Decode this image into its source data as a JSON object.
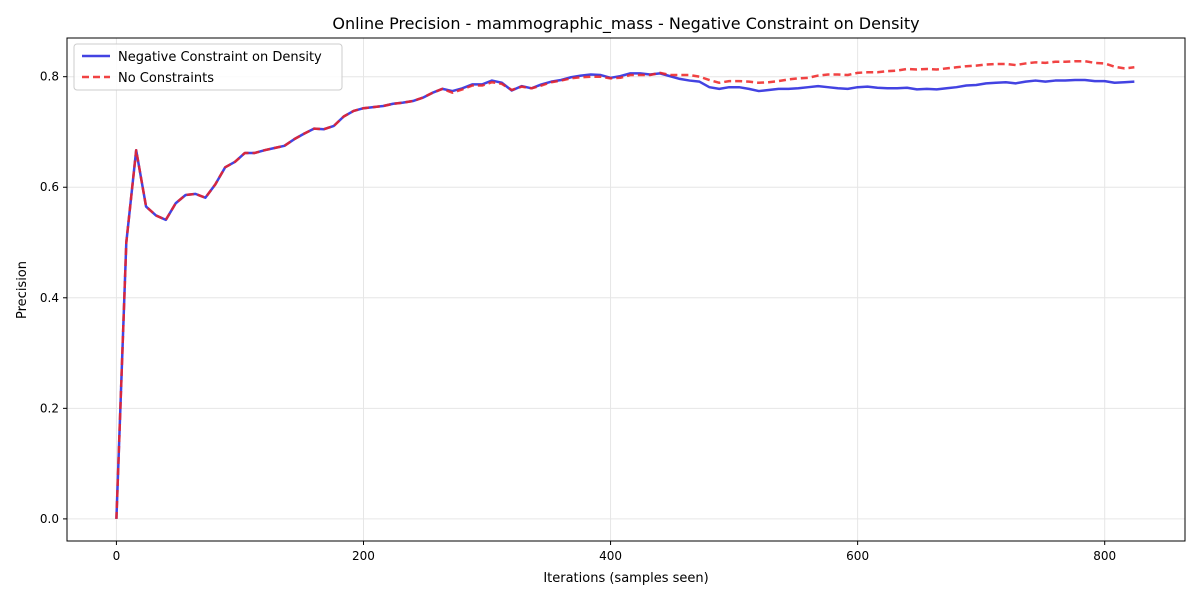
{
  "chart_data": {
    "type": "line",
    "title": "Online Precision - mammographic_mass - Negative Constraint on Density",
    "xlabel": "Iterations (samples seen)",
    "ylabel": "Precision",
    "xlim": [
      -40,
      865
    ],
    "ylim": [
      -0.04,
      0.87
    ],
    "xticks": [
      0,
      200,
      400,
      600,
      800
    ],
    "yticks": [
      0.0,
      0.2,
      0.4,
      0.6,
      0.8
    ],
    "xtick_labels": [
      "0",
      "200",
      "400",
      "600",
      "800"
    ],
    "ytick_labels": [
      "0.0",
      "0.2",
      "0.4",
      "0.6",
      "0.8"
    ],
    "grid": true,
    "legend_position": "upper-left",
    "series": [
      {
        "name": "Negative Constraint on Density",
        "color": "#2222dd",
        "style": "solid",
        "points": [
          [
            0,
            0.0
          ],
          [
            8,
            0.5
          ],
          [
            16,
            0.667
          ],
          [
            24,
            0.565
          ],
          [
            32,
            0.549
          ],
          [
            40,
            0.541
          ],
          [
            48,
            0.571
          ],
          [
            56,
            0.586
          ],
          [
            64,
            0.588
          ],
          [
            72,
            0.581
          ],
          [
            80,
            0.605
          ],
          [
            88,
            0.636
          ],
          [
            96,
            0.646
          ],
          [
            104,
            0.662
          ],
          [
            112,
            0.662
          ],
          [
            120,
            0.667
          ],
          [
            128,
            0.671
          ],
          [
            136,
            0.675
          ],
          [
            144,
            0.687
          ],
          [
            152,
            0.697
          ],
          [
            160,
            0.706
          ],
          [
            168,
            0.705
          ],
          [
            176,
            0.711
          ],
          [
            184,
            0.728
          ],
          [
            192,
            0.738
          ],
          [
            200,
            0.743
          ],
          [
            208,
            0.745
          ],
          [
            216,
            0.747
          ],
          [
            224,
            0.751
          ],
          [
            232,
            0.753
          ],
          [
            240,
            0.756
          ],
          [
            248,
            0.762
          ],
          [
            256,
            0.771
          ],
          [
            264,
            0.778
          ],
          [
            272,
            0.774
          ],
          [
            280,
            0.779
          ],
          [
            288,
            0.786
          ],
          [
            296,
            0.786
          ],
          [
            304,
            0.793
          ],
          [
            312,
            0.789
          ],
          [
            320,
            0.775
          ],
          [
            328,
            0.783
          ],
          [
            336,
            0.779
          ],
          [
            344,
            0.786
          ],
          [
            352,
            0.791
          ],
          [
            360,
            0.794
          ],
          [
            368,
            0.799
          ],
          [
            376,
            0.802
          ],
          [
            384,
            0.804
          ],
          [
            392,
            0.803
          ],
          [
            400,
            0.798
          ],
          [
            408,
            0.801
          ],
          [
            416,
            0.806
          ],
          [
            424,
            0.806
          ],
          [
            432,
            0.804
          ],
          [
            440,
            0.806
          ],
          [
            448,
            0.801
          ],
          [
            456,
            0.796
          ],
          [
            464,
            0.793
          ],
          [
            472,
            0.791
          ],
          [
            480,
            0.781
          ],
          [
            488,
            0.778
          ],
          [
            496,
            0.781
          ],
          [
            504,
            0.781
          ],
          [
            512,
            0.778
          ],
          [
            520,
            0.774
          ],
          [
            528,
            0.776
          ],
          [
            536,
            0.778
          ],
          [
            544,
            0.778
          ],
          [
            552,
            0.779
          ],
          [
            560,
            0.781
          ],
          [
            568,
            0.783
          ],
          [
            576,
            0.781
          ],
          [
            584,
            0.779
          ],
          [
            592,
            0.778
          ],
          [
            600,
            0.781
          ],
          [
            608,
            0.782
          ],
          [
            616,
            0.78
          ],
          [
            624,
            0.779
          ],
          [
            632,
            0.779
          ],
          [
            640,
            0.78
          ],
          [
            648,
            0.777
          ],
          [
            656,
            0.778
          ],
          [
            664,
            0.777
          ],
          [
            672,
            0.779
          ],
          [
            680,
            0.781
          ],
          [
            688,
            0.784
          ],
          [
            696,
            0.785
          ],
          [
            704,
            0.788
          ],
          [
            712,
            0.789
          ],
          [
            720,
            0.79
          ],
          [
            728,
            0.788
          ],
          [
            736,
            0.791
          ],
          [
            744,
            0.793
          ],
          [
            752,
            0.791
          ],
          [
            760,
            0.793
          ],
          [
            768,
            0.793
          ],
          [
            776,
            0.794
          ],
          [
            784,
            0.794
          ],
          [
            792,
            0.792
          ],
          [
            800,
            0.792
          ],
          [
            808,
            0.789
          ],
          [
            816,
            0.79
          ],
          [
            824,
            0.791
          ]
        ]
      },
      {
        "name": "No Constraints",
        "color": "#ee2222",
        "style": "dashed",
        "points": [
          [
            0,
            0.0
          ],
          [
            8,
            0.5
          ],
          [
            16,
            0.667
          ],
          [
            24,
            0.565
          ],
          [
            32,
            0.549
          ],
          [
            40,
            0.541
          ],
          [
            48,
            0.571
          ],
          [
            56,
            0.586
          ],
          [
            64,
            0.588
          ],
          [
            72,
            0.581
          ],
          [
            80,
            0.605
          ],
          [
            88,
            0.636
          ],
          [
            96,
            0.646
          ],
          [
            104,
            0.662
          ],
          [
            112,
            0.662
          ],
          [
            120,
            0.667
          ],
          [
            128,
            0.671
          ],
          [
            136,
            0.675
          ],
          [
            144,
            0.687
          ],
          [
            152,
            0.697
          ],
          [
            160,
            0.706
          ],
          [
            168,
            0.705
          ],
          [
            176,
            0.711
          ],
          [
            184,
            0.728
          ],
          [
            192,
            0.738
          ],
          [
            200,
            0.743
          ],
          [
            208,
            0.745
          ],
          [
            216,
            0.747
          ],
          [
            224,
            0.751
          ],
          [
            232,
            0.753
          ],
          [
            240,
            0.756
          ],
          [
            248,
            0.762
          ],
          [
            256,
            0.771
          ],
          [
            264,
            0.778
          ],
          [
            272,
            0.771
          ],
          [
            280,
            0.777
          ],
          [
            288,
            0.784
          ],
          [
            296,
            0.784
          ],
          [
            304,
            0.79
          ],
          [
            312,
            0.787
          ],
          [
            320,
            0.776
          ],
          [
            328,
            0.782
          ],
          [
            336,
            0.779
          ],
          [
            344,
            0.784
          ],
          [
            352,
            0.79
          ],
          [
            360,
            0.793
          ],
          [
            368,
            0.797
          ],
          [
            376,
            0.799
          ],
          [
            384,
            0.8
          ],
          [
            392,
            0.8
          ],
          [
            400,
            0.797
          ],
          [
            408,
            0.798
          ],
          [
            416,
            0.803
          ],
          [
            424,
            0.803
          ],
          [
            432,
            0.803
          ],
          [
            440,
            0.807
          ],
          [
            448,
            0.803
          ],
          [
            456,
            0.803
          ],
          [
            464,
            0.803
          ],
          [
            472,
            0.8
          ],
          [
            480,
            0.794
          ],
          [
            488,
            0.789
          ],
          [
            496,
            0.792
          ],
          [
            504,
            0.792
          ],
          [
            512,
            0.791
          ],
          [
            520,
            0.789
          ],
          [
            528,
            0.79
          ],
          [
            536,
            0.792
          ],
          [
            544,
            0.795
          ],
          [
            552,
            0.797
          ],
          [
            560,
            0.798
          ],
          [
            568,
            0.802
          ],
          [
            576,
            0.804
          ],
          [
            584,
            0.804
          ],
          [
            592,
            0.803
          ],
          [
            600,
            0.807
          ],
          [
            608,
            0.808
          ],
          [
            616,
            0.808
          ],
          [
            624,
            0.81
          ],
          [
            632,
            0.811
          ],
          [
            640,
            0.814
          ],
          [
            648,
            0.813
          ],
          [
            656,
            0.814
          ],
          [
            664,
            0.813
          ],
          [
            672,
            0.815
          ],
          [
            680,
            0.817
          ],
          [
            688,
            0.819
          ],
          [
            696,
            0.82
          ],
          [
            704,
            0.822
          ],
          [
            712,
            0.823
          ],
          [
            720,
            0.823
          ],
          [
            728,
            0.821
          ],
          [
            736,
            0.824
          ],
          [
            744,
            0.826
          ],
          [
            752,
            0.825
          ],
          [
            760,
            0.827
          ],
          [
            768,
            0.827
          ],
          [
            776,
            0.828
          ],
          [
            784,
            0.828
          ],
          [
            792,
            0.825
          ],
          [
            800,
            0.824
          ],
          [
            808,
            0.818
          ],
          [
            816,
            0.815
          ],
          [
            824,
            0.817
          ]
        ]
      }
    ]
  }
}
